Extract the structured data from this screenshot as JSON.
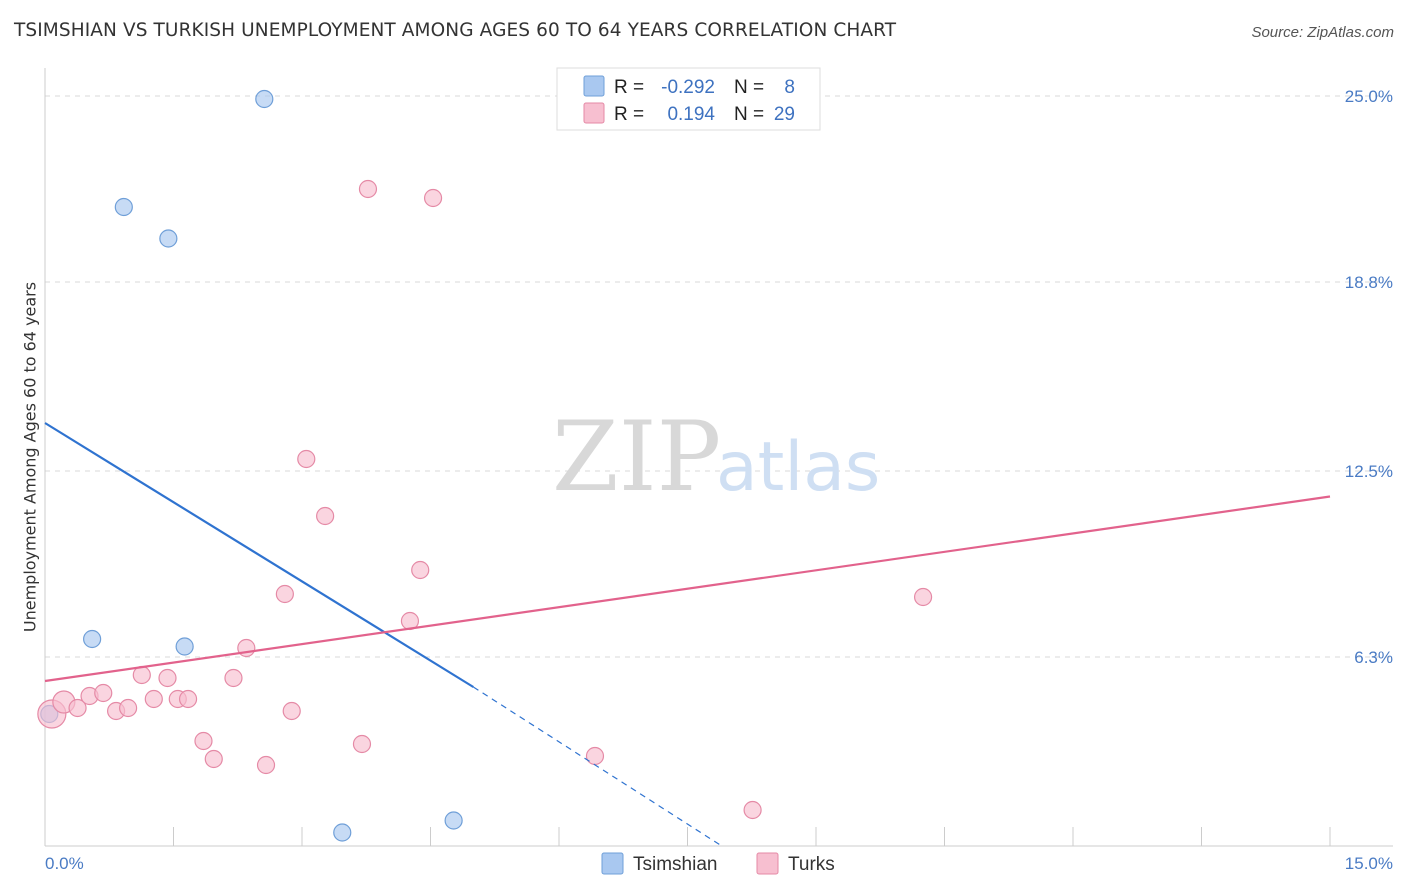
{
  "header": {
    "title": "TSIMSHIAN VS TURKISH UNEMPLOYMENT AMONG AGES 60 TO 64 YEARS CORRELATION CHART",
    "source": "Source: ZipAtlas.com"
  },
  "watermark": {
    "zip": "ZIP",
    "atlas": "atlas"
  },
  "colors": {
    "tsimshian_fill": "#a9c8f0",
    "tsimshian_stroke": "#6f9fd8",
    "tsimshian_line": "#2f73d0",
    "turks_fill": "#f7bfd0",
    "turks_stroke": "#e58aa6",
    "turks_line": "#e2628c",
    "grid": "#d9d9d9",
    "tick_text": "#4a7bc4"
  },
  "legend": {
    "rows": [
      {
        "r_label": "R =",
        "r_value": "-0.292",
        "n_label": "N =",
        "n_value": "8"
      },
      {
        "r_label": "R =",
        "r_value": "0.194",
        "n_label": "N =",
        "n_value": "29"
      }
    ]
  },
  "bottom_legend": {
    "items": [
      {
        "label": "Tsimshian"
      },
      {
        "label": "Turks"
      }
    ]
  },
  "chart_data": {
    "type": "scatter",
    "title": "TSIMSHIAN VS TURKISH UNEMPLOYMENT AMONG AGES 60 TO 64 YEARS CORRELATION CHART",
    "xlabel": "",
    "ylabel": "Unemployment Among Ages 60 to 64 years",
    "xlim": [
      0,
      15
    ],
    "ylim": [
      0,
      25.6
    ],
    "x_tick_labels": [
      {
        "value": 0,
        "label": "0.0%"
      },
      {
        "value": 15,
        "label": "15.0%"
      }
    ],
    "y_tick_labels": [
      {
        "value": 6.3,
        "label": "6.3%"
      },
      {
        "value": 12.5,
        "label": "12.5%"
      },
      {
        "value": 18.8,
        "label": "18.8%"
      },
      {
        "value": 25.0,
        "label": "25.0%"
      }
    ],
    "grid": true,
    "legend_position": "top-center",
    "series": [
      {
        "name": "Tsimshian",
        "r": -0.292,
        "n": 8,
        "points": [
          {
            "x": 0.05,
            "y": 4.4
          },
          {
            "x": 0.55,
            "y": 6.9
          },
          {
            "x": 0.92,
            "y": 21.3
          },
          {
            "x": 1.44,
            "y": 20.25
          },
          {
            "x": 1.63,
            "y": 6.65
          },
          {
            "x": 2.56,
            "y": 24.9
          },
          {
            "x": 3.47,
            "y": 0.45
          },
          {
            "x": 4.77,
            "y": 0.85
          }
        ],
        "trend": {
          "x1": 0.0,
          "y1": 14.1,
          "x2": 5.0,
          "y2": 5.3,
          "dash_x2": 7.9,
          "dash_y2": 0.0
        }
      },
      {
        "name": "Turks",
        "r": 0.194,
        "n": 29,
        "points": [
          {
            "x": 0.08,
            "y": 4.4
          },
          {
            "x": 0.22,
            "y": 4.8
          },
          {
            "x": 0.38,
            "y": 4.6
          },
          {
            "x": 0.52,
            "y": 5.0
          },
          {
            "x": 0.68,
            "y": 5.1
          },
          {
            "x": 0.83,
            "y": 4.5
          },
          {
            "x": 0.97,
            "y": 4.6
          },
          {
            "x": 1.13,
            "y": 5.7
          },
          {
            "x": 1.27,
            "y": 4.9
          },
          {
            "x": 1.43,
            "y": 5.6
          },
          {
            "x": 1.55,
            "y": 4.9
          },
          {
            "x": 1.67,
            "y": 4.9
          },
          {
            "x": 1.85,
            "y": 3.5
          },
          {
            "x": 1.97,
            "y": 2.9
          },
          {
            "x": 2.2,
            "y": 5.6
          },
          {
            "x": 2.35,
            "y": 6.6
          },
          {
            "x": 2.58,
            "y": 2.7
          },
          {
            "x": 2.8,
            "y": 8.4
          },
          {
            "x": 2.88,
            "y": 4.5
          },
          {
            "x": 3.05,
            "y": 12.9
          },
          {
            "x": 3.27,
            "y": 11.0
          },
          {
            "x": 3.7,
            "y": 3.4
          },
          {
            "x": 3.77,
            "y": 21.9
          },
          {
            "x": 4.26,
            "y": 7.5
          },
          {
            "x": 4.38,
            "y": 9.2
          },
          {
            "x": 4.53,
            "y": 21.6
          },
          {
            "x": 6.42,
            "y": 3.0
          },
          {
            "x": 8.26,
            "y": 1.2
          },
          {
            "x": 10.25,
            "y": 8.3
          }
        ],
        "trend": {
          "x1": 0.0,
          "y1": 5.5,
          "x2": 15.0,
          "y2": 11.65
        }
      }
    ]
  }
}
